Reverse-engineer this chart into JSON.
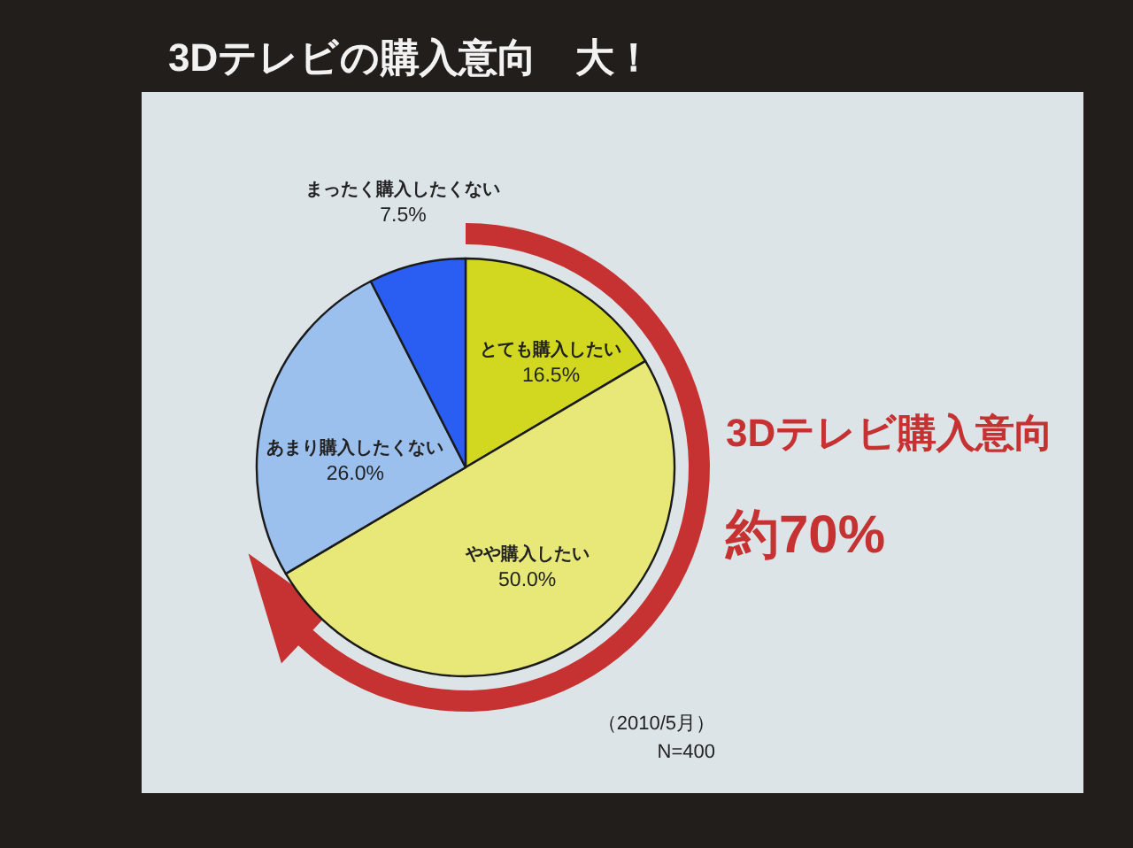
{
  "chart_data": {
    "type": "pie",
    "title": "3Dテレビの購入意向　大！",
    "categories": [
      "とても購入したい",
      "やや購入したい",
      "あまり購入したくない",
      "まったく購入したくない"
    ],
    "values": [
      16.5,
      50.0,
      26.0,
      7.5
    ],
    "colors": [
      "#d2d820",
      "#e8e878",
      "#9cc0ee",
      "#2a5ef2"
    ],
    "value_labels": [
      "16.5%",
      "50.0%",
      "26.0%",
      "7.5%"
    ],
    "annotations": [
      "3Dテレビ購入意向",
      "約70%",
      "（2010/5月）",
      "N=400"
    ]
  }
}
